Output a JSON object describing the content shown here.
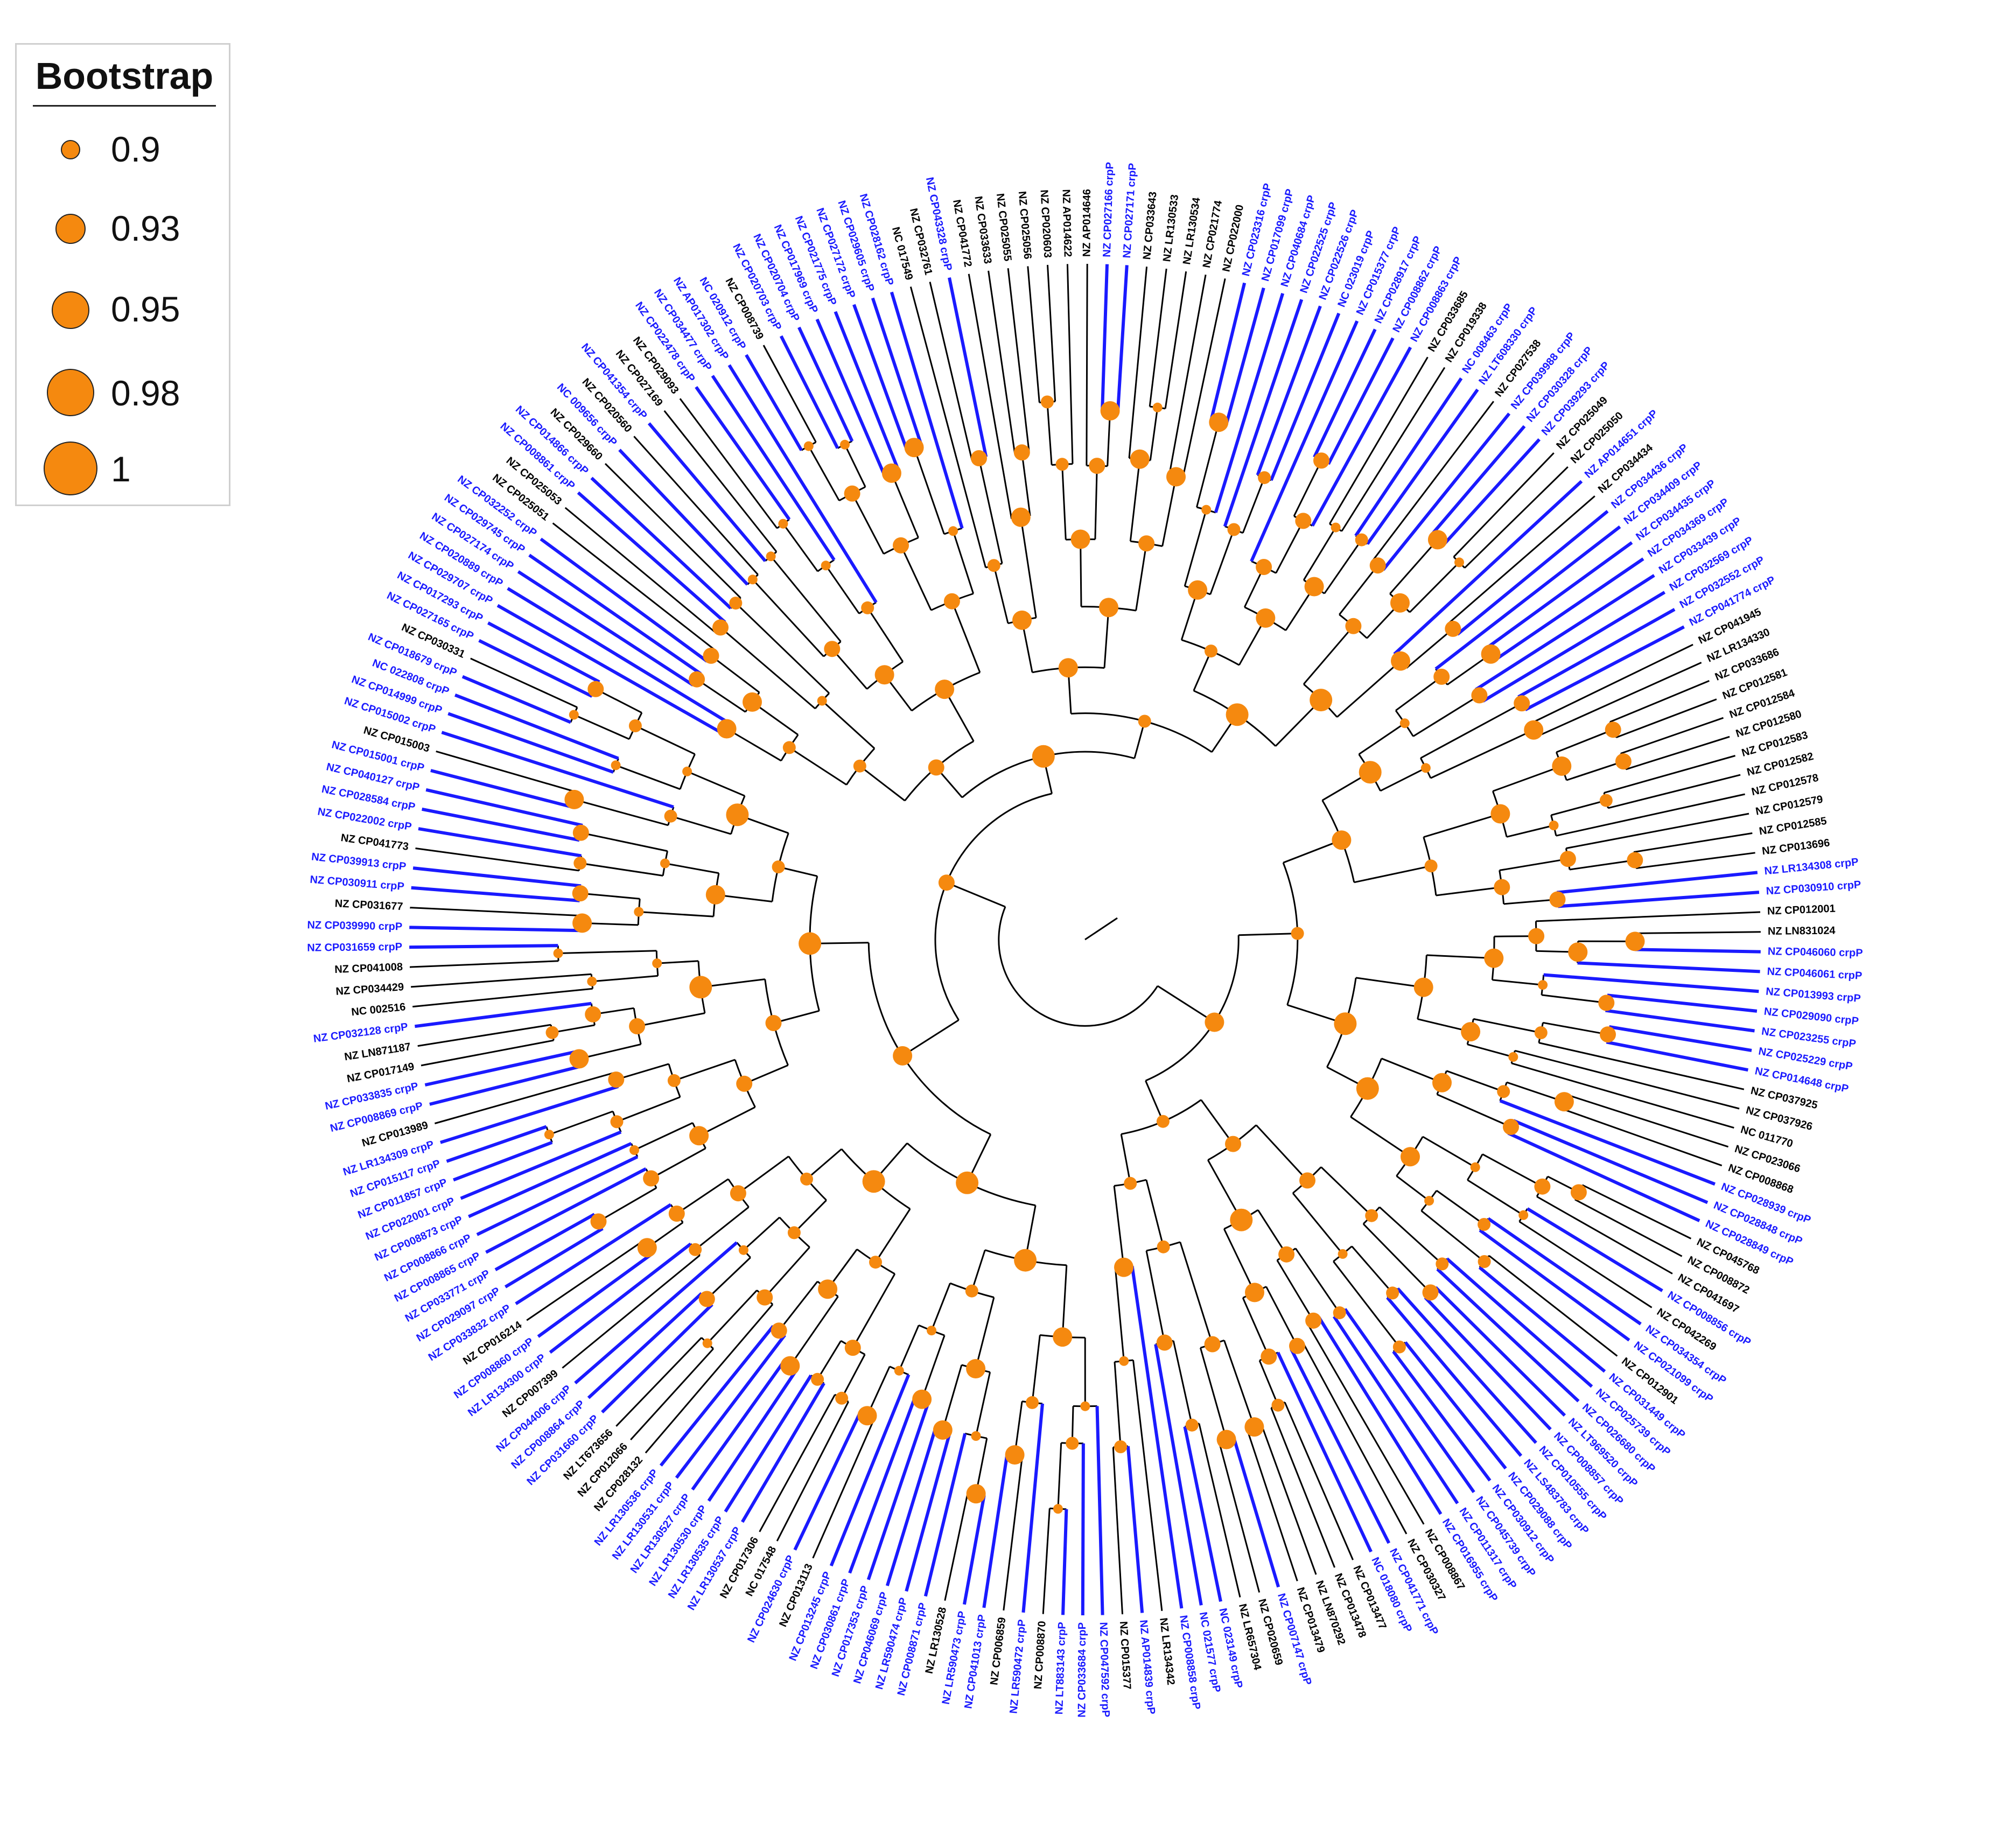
{
  "legend": {
    "title": "Bootstrap",
    "items": [
      {
        "value": "0.9"
      },
      {
        "value": "0.93"
      },
      {
        "value": "0.95"
      },
      {
        "value": "0.98"
      },
      {
        "value": "1"
      }
    ]
  },
  "colors": {
    "crp_branch": "#1a1aff",
    "crp_label": "#1a1aff",
    "other_branch": "#000000",
    "other_label": "#000000",
    "bootstrap_node": "#f5890f"
  },
  "tips": [
    [
      "NZ CP034409 crpP",
      1
    ],
    [
      "NZ CP034435 crpP",
      1
    ],
    [
      "NZ CP034369 crpP",
      1
    ],
    [
      "NZ CP033439 crpP",
      1
    ],
    [
      "NZ CP032569 crpP",
      1
    ],
    [
      "NZ CP032552 crpP",
      1
    ],
    [
      "NZ CP041774 crpP",
      1
    ],
    [
      "NZ CP041945",
      0
    ],
    [
      "NZ LR134330",
      0
    ],
    [
      "NZ CP033686",
      0
    ],
    [
      "NZ CP012581",
      0
    ],
    [
      "NZ CP012584",
      0
    ],
    [
      "NZ CP012580",
      0
    ],
    [
      "NZ CP012583",
      0
    ],
    [
      "NZ CP012582",
      0
    ],
    [
      "NZ CP012578",
      0
    ],
    [
      "NZ CP012579",
      0
    ],
    [
      "NZ CP012585",
      0
    ],
    [
      "NZ CP013696",
      0
    ],
    [
      "NZ LR134308 crpP",
      1
    ],
    [
      "NZ CP030910 crpP",
      1
    ],
    [
      "NZ CP012001",
      0
    ],
    [
      "NZ LN831024",
      0
    ],
    [
      "NZ CP046060 crpP",
      1
    ],
    [
      "NZ CP046061 crpP",
      1
    ],
    [
      "NZ CP013993 crpP",
      1
    ],
    [
      "NZ CP029090 crpP",
      1
    ],
    [
      "NZ CP023255 crpP",
      1
    ],
    [
      "NZ CP025229 crpP",
      1
    ],
    [
      "NZ CP014648 crpP",
      1
    ],
    [
      "NZ CP037925",
      0
    ],
    [
      "NZ CP037926",
      0
    ],
    [
      "NC 011770",
      0
    ],
    [
      "NZ CP023066",
      0
    ],
    [
      "NZ CP008868",
      0
    ],
    [
      "NZ CP028939 crpP",
      1
    ],
    [
      "NZ CP028848 crpP",
      1
    ],
    [
      "NZ CP028849 crpP",
      1
    ],
    [
      "NZ CP045768",
      0
    ],
    [
      "NZ CP008872",
      0
    ],
    [
      "NZ CP041697",
      0
    ],
    [
      "NZ CP008856 crpP",
      1
    ],
    [
      "NZ CP042269",
      0
    ],
    [
      "NZ CP034354 crpP",
      1
    ],
    [
      "NZ CP021099 crpP",
      1
    ],
    [
      "NZ CP012901",
      0
    ],
    [
      "NZ CP031449 crpP",
      1
    ],
    [
      "NZ CP025739 crpP",
      1
    ],
    [
      "NZ CP026680 crpP",
      1
    ],
    [
      "NZ LT969520 crpP",
      1
    ],
    [
      "NZ CP008857 crpP",
      1
    ],
    [
      "NZ CP010555 crpP",
      1
    ],
    [
      "NZ LS483783 crpP",
      1
    ],
    [
      "NZ CP029088 crpP",
      1
    ],
    [
      "NZ CP030912 crpP",
      1
    ],
    [
      "NZ CP045739 crpP",
      1
    ],
    [
      "NZ CP011317 crpP",
      1
    ],
    [
      "NZ CP016955 crpP",
      1
    ],
    [
      "NZ CP008867",
      0
    ],
    [
      "NZ CP030327",
      0
    ],
    [
      "NZ CP041771 crpP",
      1
    ],
    [
      "NC 018080 crpP",
      1
    ],
    [
      "NZ CP013477",
      0
    ],
    [
      "NZ CP013478",
      0
    ],
    [
      "NZ LN870292",
      0
    ],
    [
      "NZ CP013479",
      0
    ],
    [
      "NZ CP007147 crpP",
      1
    ],
    [
      "NZ CP020659",
      0
    ],
    [
      "NZ LR657304",
      0
    ],
    [
      "NC 023149 crpP",
      1
    ],
    [
      "NC 021577 crpP",
      1
    ],
    [
      "NZ CP008858 crpP",
      1
    ],
    [
      "NZ LR134342",
      0
    ],
    [
      "NZ AP014839 crpP",
      1
    ],
    [
      "NZ CP015377",
      0
    ],
    [
      "NZ CP047592 crpP",
      1
    ],
    [
      "NZ CP033684 crpP",
      1
    ],
    [
      "NZ LT883143 crpP",
      1
    ],
    [
      "NZ CP008870",
      0
    ],
    [
      "NZ LR590472 crpP",
      1
    ],
    [
      "NZ CP006859",
      0
    ],
    [
      "NZ CP041013 crpP",
      1
    ],
    [
      "NZ LR590473 crpP",
      1
    ],
    [
      "NZ LR130528",
      0
    ],
    [
      "NZ CP008871 crpP",
      1
    ],
    [
      "NZ LR590474 crpP",
      1
    ],
    [
      "NZ CP046069 crpP",
      1
    ],
    [
      "NZ CP017353 crpP",
      1
    ],
    [
      "NZ CP030861 crpP",
      1
    ],
    [
      "NZ CP013245 crpP",
      1
    ],
    [
      "NZ CP013113",
      0
    ],
    [
      "NZ CP024630 crpP",
      1
    ],
    [
      "NC 017548",
      0
    ],
    [
      "NZ CP017306",
      0
    ],
    [
      "NZ LR130537 crpP",
      1
    ],
    [
      "NZ LR130535 crpP",
      1
    ],
    [
      "NZ LR130530 crpP",
      1
    ],
    [
      "NZ LR130527 crpP",
      1
    ],
    [
      "NZ LR130531 crpP",
      1
    ],
    [
      "NZ LR130536 crpP",
      1
    ],
    [
      "NZ CP028132",
      0
    ],
    [
      "NZ CP012066",
      0
    ],
    [
      "NZ LT673656",
      0
    ],
    [
      "NZ CP031660 crpP",
      1
    ],
    [
      "NZ CP008864 crpP",
      1
    ],
    [
      "NZ CP044006 crpP",
      1
    ],
    [
      "NZ CP007399",
      0
    ],
    [
      "NZ LR134300 crpP",
      1
    ],
    [
      "NZ CP008860 crpP",
      1
    ],
    [
      "NZ CP016214",
      0
    ],
    [
      "NZ CP033832 crpP",
      1
    ],
    [
      "NZ CP029097 crpP",
      1
    ],
    [
      "NZ CP033771 crpP",
      1
    ],
    [
      "NZ CP008865 crpP",
      1
    ],
    [
      "NZ CP008866 crpP",
      1
    ],
    [
      "NZ CP008873 crpP",
      1
    ],
    [
      "NZ CP022001 crpP",
      1
    ],
    [
      "NZ CP011857 crpP",
      1
    ],
    [
      "NZ CP015117 crpP",
      1
    ],
    [
      "NZ LR134309 crpP",
      1
    ],
    [
      "NZ CP013989",
      0
    ],
    [
      "NZ CP008869 crpP",
      1
    ],
    [
      "NZ CP033835 crpP",
      1
    ],
    [
      "NZ CP017149",
      0
    ],
    [
      "NZ LN871187",
      0
    ],
    [
      "NZ CP032128 crpP",
      1
    ],
    [
      "NC 002516",
      0
    ],
    [
      "NZ CP034429",
      0
    ],
    [
      "NZ CP041008",
      0
    ],
    [
      "NZ CP031659 crpP",
      1
    ],
    [
      "NZ CP039990 crpP",
      1
    ],
    [
      "NZ CP031677",
      0
    ],
    [
      "NZ CP030911 crpP",
      1
    ],
    [
      "NZ CP039913 crpP",
      1
    ],
    [
      "NZ CP041773",
      0
    ],
    [
      "NZ CP022002 crpP",
      1
    ],
    [
      "NZ CP028584 crpP",
      1
    ],
    [
      "NZ CP040127 crpP",
      1
    ],
    [
      "NZ CP015001 crpP",
      1
    ],
    [
      "NZ CP015003",
      0
    ],
    [
      "NZ CP015002 crpP",
      1
    ],
    [
      "NZ CP014999 crpP",
      1
    ],
    [
      "NC 022808 crpP",
      1
    ],
    [
      "NZ CP018679 crpP",
      1
    ],
    [
      "NZ CP030331",
      0
    ],
    [
      "NZ CP027165 crpP",
      1
    ],
    [
      "NZ CP017293 crpP",
      1
    ],
    [
      "NZ CP029707 crpP",
      1
    ],
    [
      "NZ CP020889 crpP",
      1
    ],
    [
      "NZ CP027174 crpP",
      1
    ],
    [
      "NZ CP029745 crpP",
      1
    ],
    [
      "NZ CP032252 crpP",
      1
    ],
    [
      "NZ CP025051",
      0
    ],
    [
      "NZ CP025053",
      0
    ],
    [
      "NZ CP008861 crpP",
      1
    ],
    [
      "NZ CP014866 crpP",
      1
    ],
    [
      "NZ CP029660",
      0
    ],
    [
      "NC 009656 crpP",
      1
    ],
    [
      "NZ CP020560",
      0
    ],
    [
      "NZ CP041354 crpP",
      1
    ],
    [
      "NZ CP027169",
      0
    ],
    [
      "NZ CP029093",
      0
    ],
    [
      "NZ CP022478 crpP",
      1
    ],
    [
      "NZ CP034477 crpP",
      1
    ],
    [
      "NZ AP017302 crpP",
      1
    ],
    [
      "NC 020912 crpP",
      1
    ],
    [
      "NZ CP008739",
      0
    ],
    [
      "NZ CP020703 crpP",
      1
    ],
    [
      "NZ CP020704 crpP",
      1
    ],
    [
      "NZ CP017969 crpP",
      1
    ],
    [
      "NZ CP021775 crpP",
      1
    ],
    [
      "NZ CP027172 crpP",
      1
    ],
    [
      "NZ CP029605 crpP",
      1
    ],
    [
      "NZ CP028162 crpP",
      1
    ],
    [
      "NC 017549",
      0
    ],
    [
      "NZ CP032761",
      0
    ],
    [
      "NZ CP043328 crpP",
      1
    ],
    [
      "NZ CP041772",
      0
    ],
    [
      "NZ CP033633",
      0
    ],
    [
      "NZ CP025055",
      0
    ],
    [
      "NZ CP025056",
      0
    ],
    [
      "NZ CP020603",
      0
    ],
    [
      "NZ AP014622",
      0
    ],
    [
      "NZ AP014646",
      0
    ],
    [
      "NZ CP027166 crpP",
      1
    ],
    [
      "NZ CP027171 crpP",
      1
    ],
    [
      "NZ CP033643",
      0
    ],
    [
      "NZ LR130533",
      0
    ],
    [
      "NZ LR130534",
      0
    ],
    [
      "NZ CP021774",
      0
    ],
    [
      "NZ CP022000",
      0
    ],
    [
      "NZ CP023316 crpP",
      1
    ],
    [
      "NZ CP017099 crpP",
      1
    ],
    [
      "NZ CP040684 crpP",
      1
    ],
    [
      "NZ CP022525 crpP",
      1
    ],
    [
      "NZ CP022526 crpP",
      1
    ],
    [
      "NC 023019 crpP",
      1
    ],
    [
      "NZ CP015377 crpP",
      1
    ],
    [
      "NZ CP028917 crpP",
      1
    ],
    [
      "NZ CP008862 crpP",
      1
    ],
    [
      "NZ CP008863 crpP",
      1
    ],
    [
      "NZ CP033685",
      0
    ],
    [
      "NZ CP019338",
      0
    ],
    [
      "NC 008463 crpP",
      1
    ],
    [
      "NZ LT608330 crpP",
      1
    ],
    [
      "NZ CP027538",
      0
    ],
    [
      "NZ CP039988 crpP",
      1
    ],
    [
      "NZ CP030328 crpP",
      1
    ],
    [
      "NZ CP039293 crpP",
      1
    ],
    [
      "NZ CP025049",
      0
    ],
    [
      "NZ CP025050",
      0
    ],
    [
      "NZ AP014651 crpP",
      1
    ],
    [
      "NZ CP034434",
      0
    ],
    [
      "NZ CP034436 crpP",
      1
    ]
  ]
}
